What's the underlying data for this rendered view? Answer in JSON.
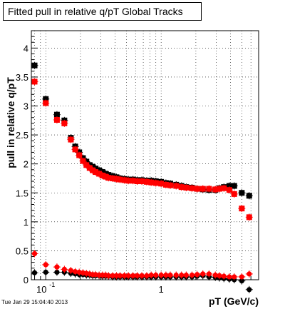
{
  "title": "Fitted pull in relative q/pT  Global Tracks",
  "timestamp": "Tue Jan 29 15:04:40 2013",
  "colors": {
    "series_black": "#000000",
    "series_red": "#ff0000",
    "grid": "#000000"
  },
  "chart_data": {
    "type": "scatter",
    "xlabel": "pT (GeV/c)",
    "ylabel": "pull in relative q/pT",
    "x_scale": "log",
    "xlim": [
      0.075,
      7.0
    ],
    "ylim": [
      0,
      4.3
    ],
    "grid": true,
    "legend": "none",
    "x_tick_labels": [
      {
        "value": 0.1,
        "base": "10",
        "exp": "-1"
      },
      {
        "value": 1,
        "base": "1",
        "exp": ""
      }
    ],
    "y_tick_labels": [
      "0",
      "0.5",
      "1",
      "1.5",
      "2",
      "2.5",
      "3",
      "3.5",
      "4"
    ],
    "y_ticks": [
      0,
      0.5,
      1,
      1.5,
      2,
      2.5,
      3,
      3.5,
      4
    ],
    "series": [
      {
        "color": "#000000",
        "marker": "square",
        "points": [
          [
            0.08,
            3.7
          ],
          [
            0.1,
            3.12
          ],
          [
            0.125,
            2.85
          ],
          [
            0.145,
            2.75
          ],
          [
            0.165,
            2.45
          ],
          [
            0.18,
            2.3
          ],
          [
            0.195,
            2.2
          ],
          [
            0.21,
            2.1
          ],
          [
            0.225,
            2.04
          ],
          [
            0.24,
            1.98
          ],
          [
            0.255,
            1.95
          ],
          [
            0.27,
            1.92
          ],
          [
            0.29,
            1.89
          ],
          [
            0.31,
            1.86
          ],
          [
            0.33,
            1.83
          ],
          [
            0.35,
            1.81
          ],
          [
            0.38,
            1.79
          ],
          [
            0.41,
            1.77
          ],
          [
            0.44,
            1.75
          ],
          [
            0.48,
            1.74
          ],
          [
            0.52,
            1.73
          ],
          [
            0.57,
            1.73
          ],
          [
            0.62,
            1.72
          ],
          [
            0.68,
            1.72
          ],
          [
            0.75,
            1.71
          ],
          [
            0.82,
            1.71
          ],
          [
            0.9,
            1.7
          ],
          [
            1.0,
            1.69
          ],
          [
            1.1,
            1.67
          ],
          [
            1.2,
            1.66
          ],
          [
            1.35,
            1.64
          ],
          [
            1.5,
            1.62
          ],
          [
            1.65,
            1.6
          ],
          [
            1.85,
            1.59
          ],
          [
            2.05,
            1.57
          ],
          [
            2.3,
            1.56
          ],
          [
            2.6,
            1.55
          ],
          [
            2.95,
            1.55
          ],
          [
            3.2,
            1.58
          ],
          [
            3.5,
            1.6
          ],
          [
            3.9,
            1.62
          ],
          [
            4.3,
            1.62
          ],
          [
            5.0,
            1.5
          ],
          [
            5.8,
            1.45
          ]
        ]
      },
      {
        "color": "#ff0000",
        "marker": "square",
        "points": [
          [
            0.08,
            3.42
          ],
          [
            0.1,
            3.05
          ],
          [
            0.125,
            2.76
          ],
          [
            0.145,
            2.7
          ],
          [
            0.165,
            2.42
          ],
          [
            0.18,
            2.25
          ],
          [
            0.195,
            2.15
          ],
          [
            0.21,
            2.05
          ],
          [
            0.225,
            1.98
          ],
          [
            0.24,
            1.93
          ],
          [
            0.255,
            1.89
          ],
          [
            0.27,
            1.86
          ],
          [
            0.29,
            1.83
          ],
          [
            0.31,
            1.8
          ],
          [
            0.33,
            1.78
          ],
          [
            0.35,
            1.76
          ],
          [
            0.38,
            1.75
          ],
          [
            0.41,
            1.74
          ],
          [
            0.44,
            1.73
          ],
          [
            0.48,
            1.72
          ],
          [
            0.52,
            1.71
          ],
          [
            0.57,
            1.71
          ],
          [
            0.62,
            1.7
          ],
          [
            0.68,
            1.7
          ],
          [
            0.75,
            1.69
          ],
          [
            0.82,
            1.68
          ],
          [
            0.9,
            1.67
          ],
          [
            1.0,
            1.66
          ],
          [
            1.1,
            1.64
          ],
          [
            1.2,
            1.63
          ],
          [
            1.35,
            1.62
          ],
          [
            1.5,
            1.6
          ],
          [
            1.65,
            1.59
          ],
          [
            1.85,
            1.58
          ],
          [
            2.05,
            1.57
          ],
          [
            2.3,
            1.57
          ],
          [
            2.6,
            1.57
          ],
          [
            2.95,
            1.56
          ],
          [
            3.2,
            1.57
          ],
          [
            3.5,
            1.58
          ],
          [
            3.9,
            1.55
          ],
          [
            4.3,
            1.48
          ],
          [
            5.0,
            1.23
          ],
          [
            5.8,
            1.08
          ]
        ]
      },
      {
        "color": "#000000",
        "marker": "circle",
        "points": [
          [
            0.08,
            0.12
          ],
          [
            0.1,
            0.13
          ],
          [
            0.125,
            0.13
          ],
          [
            0.145,
            0.13
          ],
          [
            0.165,
            0.11
          ],
          [
            0.18,
            0.1
          ],
          [
            0.195,
            0.09
          ],
          [
            0.21,
            0.09
          ],
          [
            0.225,
            0.08
          ],
          [
            0.24,
            0.08
          ],
          [
            0.255,
            0.07
          ],
          [
            0.27,
            0.07
          ],
          [
            0.29,
            0.07
          ],
          [
            0.31,
            0.06
          ],
          [
            0.33,
            0.06
          ],
          [
            0.35,
            0.06
          ],
          [
            0.38,
            0.05
          ],
          [
            0.41,
            0.05
          ],
          [
            0.44,
            0.05
          ],
          [
            0.48,
            0.05
          ],
          [
            0.52,
            0.05
          ],
          [
            0.57,
            0.05
          ],
          [
            0.62,
            0.05
          ],
          [
            0.68,
            0.05
          ],
          [
            0.75,
            0.05
          ],
          [
            0.82,
            0.05
          ],
          [
            0.9,
            0.05
          ],
          [
            1.0,
            0.05
          ],
          [
            1.1,
            0.05
          ],
          [
            1.2,
            0.05
          ],
          [
            1.35,
            0.05
          ],
          [
            1.5,
            0.05
          ],
          [
            1.65,
            0.05
          ],
          [
            1.85,
            0.05
          ],
          [
            2.05,
            0.06
          ],
          [
            2.3,
            0.07
          ],
          [
            2.6,
            0.05
          ],
          [
            2.95,
            0.04
          ],
          [
            3.2,
            0.03
          ],
          [
            3.5,
            0.02
          ],
          [
            3.9,
            0.01
          ],
          [
            4.3,
            0.0
          ],
          [
            5.0,
            -0.02
          ],
          [
            5.8,
            -0.17
          ]
        ]
      },
      {
        "color": "#ff0000",
        "marker": "circle",
        "points": [
          [
            0.08,
            0.45
          ],
          [
            0.1,
            0.26
          ],
          [
            0.125,
            0.22
          ],
          [
            0.145,
            0.18
          ],
          [
            0.165,
            0.16
          ],
          [
            0.18,
            0.14
          ],
          [
            0.195,
            0.13
          ],
          [
            0.21,
            0.12
          ],
          [
            0.225,
            0.11
          ],
          [
            0.24,
            0.1
          ],
          [
            0.255,
            0.09
          ],
          [
            0.27,
            0.09
          ],
          [
            0.29,
            0.08
          ],
          [
            0.31,
            0.08
          ],
          [
            0.33,
            0.08
          ],
          [
            0.35,
            0.07
          ],
          [
            0.38,
            0.07
          ],
          [
            0.41,
            0.07
          ],
          [
            0.44,
            0.07
          ],
          [
            0.48,
            0.07
          ],
          [
            0.52,
            0.07
          ],
          [
            0.57,
            0.07
          ],
          [
            0.62,
            0.07
          ],
          [
            0.68,
            0.07
          ],
          [
            0.75,
            0.07
          ],
          [
            0.82,
            0.08
          ],
          [
            0.9,
            0.08
          ],
          [
            1.0,
            0.08
          ],
          [
            1.1,
            0.08
          ],
          [
            1.2,
            0.08
          ],
          [
            1.35,
            0.08
          ],
          [
            1.5,
            0.08
          ],
          [
            1.65,
            0.08
          ],
          [
            1.85,
            0.08
          ],
          [
            2.05,
            0.09
          ],
          [
            2.3,
            0.1
          ],
          [
            2.6,
            0.1
          ],
          [
            2.95,
            0.08
          ],
          [
            3.2,
            0.07
          ],
          [
            3.5,
            0.06
          ],
          [
            3.9,
            0.05
          ],
          [
            4.3,
            0.05
          ],
          [
            5.0,
            0.05
          ],
          [
            5.8,
            0.1
          ]
        ]
      }
    ]
  }
}
